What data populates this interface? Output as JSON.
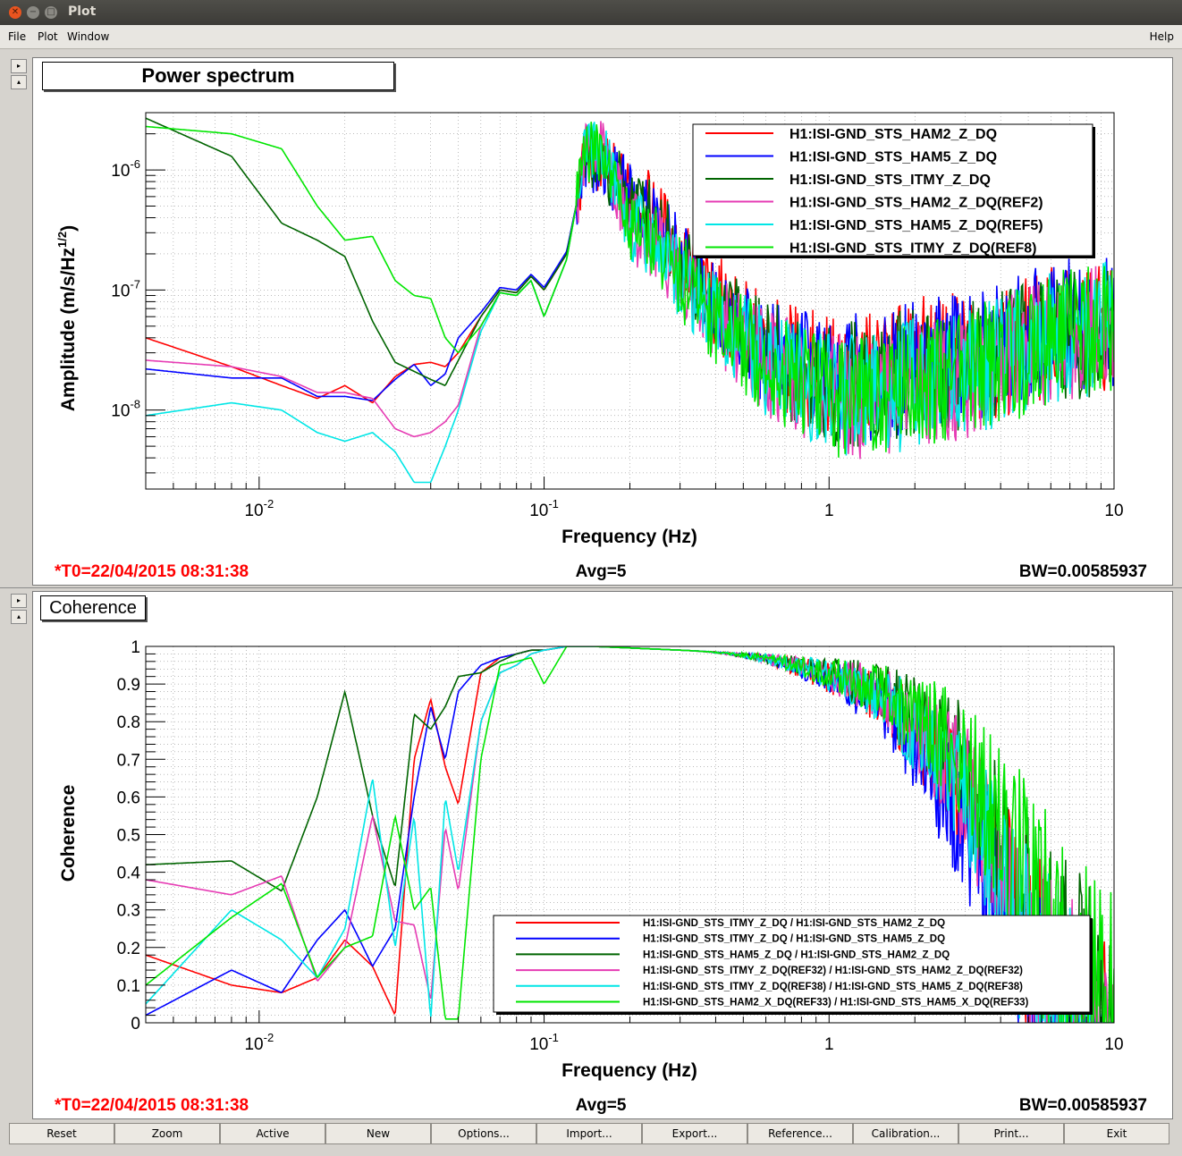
{
  "window": {
    "title": "Plot"
  },
  "menu": {
    "file": "File",
    "plot": "Plot",
    "window": "Window",
    "help": "Help"
  },
  "buttons": [
    "Reset",
    "Zoom",
    "Active",
    "New",
    "Options...",
    "Import...",
    "Export...",
    "Reference...",
    "Calibration...",
    "Print...",
    "Exit"
  ],
  "colors": {
    "red": "#ff0000",
    "blue": "#0000ff",
    "darkgreen": "#006400",
    "magenta": "#e63cb4",
    "cyan": "#00e6e6",
    "green": "#00e600",
    "status_red": "#ff0000"
  },
  "top": {
    "title": "Power spectrum",
    "xlabel": "Frequency (Hz)",
    "ylabel": "Amplitude (m/s/Hz",
    "ylabel_sup": "1/2",
    "ylabel_close": ")",
    "status_t0": "*T0=22/04/2015 08:31:38",
    "status_avg": "Avg=5",
    "status_bw": "BW=0.00585937",
    "legend": [
      "H1:ISI-GND_STS_HAM2_Z_DQ",
      "H1:ISI-GND_STS_HAM5_Z_DQ",
      "H1:ISI-GND_STS_ITMY_Z_DQ",
      "H1:ISI-GND_STS_HAM2_Z_DQ(REF2)",
      "H1:ISI-GND_STS_HAM5_Z_DQ(REF5)",
      "H1:ISI-GND_STS_ITMY_Z_DQ(REF8)"
    ]
  },
  "bottom": {
    "title": "Coherence",
    "xlabel": "Frequency (Hz)",
    "ylabel": "Coherence",
    "status_t0": "*T0=22/04/2015 08:31:38",
    "status_avg": "Avg=5",
    "status_bw": "BW=0.00585937",
    "legend": [
      "H1:ISI-GND_STS_ITMY_Z_DQ / H1:ISI-GND_STS_HAM2_Z_DQ",
      "H1:ISI-GND_STS_ITMY_Z_DQ / H1:ISI-GND_STS_HAM5_Z_DQ",
      "H1:ISI-GND_STS_HAM5_Z_DQ / H1:ISI-GND_STS_HAM2_Z_DQ",
      "H1:ISI-GND_STS_ITMY_Z_DQ(REF32) / H1:ISI-GND_STS_HAM2_Z_DQ(REF32)",
      "H1:ISI-GND_STS_ITMY_Z_DQ(REF38) / H1:ISI-GND_STS_HAM5_Z_DQ(REF38)",
      "H1:ISI-GND_STS_HAM2_X_DQ(REF33) / H1:ISI-GND_STS_HAM5_X_DQ(REF33)"
    ]
  },
  "chart_data": [
    {
      "type": "line",
      "title": "Power spectrum",
      "xlabel": "Frequency (Hz)",
      "ylabel": "Amplitude (m/s/Hz^1/2)",
      "xscale": "log",
      "yscale": "log",
      "xlim": [
        0.004,
        10
      ],
      "ylim": [
        2.2e-09,
        3e-06
      ],
      "x_ticks": [
        "10^-2",
        "10^-1",
        "1",
        "10"
      ],
      "y_ticks": [
        "10^-8",
        "10^-7",
        "10^-6"
      ],
      "grid": true,
      "legend_position": "top-right",
      "x": [
        0.004,
        0.008,
        0.012,
        0.016,
        0.02,
        0.025,
        0.03,
        0.035,
        0.04,
        0.045,
        0.05,
        0.06,
        0.07,
        0.08,
        0.09,
        0.1,
        0.12,
        0.14,
        0.16,
        0.2,
        0.25,
        0.3,
        0.4,
        0.6,
        1,
        1.5,
        2,
        3,
        4,
        6,
        10
      ],
      "series": [
        {
          "name": "H1:ISI-GND_STS_HAM2_Z_DQ",
          "color": "#ff0000",
          "values": [
            4e-08,
            2.3e-08,
            1.6e-08,
            1.25e-08,
            1.6e-08,
            1.15e-08,
            1.9e-08,
            2.4e-08,
            2.5e-08,
            2.3e-08,
            3e-08,
            6e-08,
            1e-07,
            9.5e-08,
            1.3e-07,
            1e-07,
            2e-07,
            1.3e-06,
            1.1e-06,
            6.5e-07,
            4e-07,
            1.9e-07,
            8e-08,
            3.2e-08,
            1.9e-08,
            2e-08,
            2.5e-08,
            2.8e-08,
            3e-08,
            4.5e-08,
            5e-08
          ]
        },
        {
          "name": "H1:ISI-GND_STS_HAM5_Z_DQ",
          "color": "#0000ff",
          "values": [
            2.2e-08,
            1.85e-08,
            1.85e-08,
            1.3e-08,
            1.3e-08,
            1.2e-08,
            1.8e-08,
            2.4e-08,
            1.6e-08,
            2e-08,
            4e-08,
            6.5e-08,
            1.05e-07,
            1e-07,
            1.35e-07,
            1.05e-07,
            2.1e-07,
            1.25e-06,
            1.05e-06,
            6e-07,
            3.8e-07,
            1.8e-07,
            7.5e-08,
            3e-08,
            1.8e-08,
            1.9e-08,
            2.4e-08,
            2.6e-08,
            3.2e-08,
            5e-08,
            5.5e-08
          ]
        },
        {
          "name": "H1:ISI-GND_STS_ITMY_Z_DQ",
          "color": "#006400",
          "values": [
            2.7e-06,
            1.3e-06,
            3.6e-07,
            2.6e-07,
            1.9e-07,
            5.5e-08,
            2.5e-08,
            2.1e-08,
            1.8e-08,
            1.6e-08,
            2.6e-08,
            6e-08,
            1e-07,
            9.5e-08,
            1.3e-07,
            1e-07,
            2e-07,
            1.25e-06,
            1.05e-06,
            6e-07,
            3.8e-07,
            1.8e-07,
            7.5e-08,
            3e-08,
            1.6e-08,
            1.8e-08,
            2.2e-08,
            2.4e-08,
            2.8e-08,
            4e-08,
            4.5e-08
          ]
        },
        {
          "name": "H1:ISI-GND_STS_HAM2_Z_DQ(REF2)",
          "color": "#e63cb4",
          "values": [
            2.6e-08,
            2.3e-08,
            1.9e-08,
            1.4e-08,
            1.4e-08,
            1.25e-08,
            7e-09,
            6e-09,
            6.5e-09,
            8e-09,
            1.1e-08,
            5e-08,
            9.5e-08,
            9e-08,
            1.2e-07,
            6e-08,
            1.8e-07,
            1.4e-06,
            1.5e-06,
            3.5e-07,
            2.4e-07,
            1.3e-07,
            6e-08,
            2.5e-08,
            1.3e-08,
            1.4e-08,
            1.7e-08,
            2e-08,
            2.5e-08,
            4e-08,
            5e-08
          ]
        },
        {
          "name": "H1:ISI-GND_STS_HAM5_Z_DQ(REF5)",
          "color": "#00e6e6",
          "values": [
            9e-09,
            1.15e-08,
            1e-08,
            6.5e-09,
            5.5e-09,
            6.5e-09,
            4.5e-09,
            2.5e-09,
            2.5e-09,
            5e-09,
            1e-08,
            4.5e-08,
            9.5e-08,
            9e-08,
            1.2e-07,
            6e-08,
            1.8e-07,
            1.4e-06,
            1.5e-06,
            3.5e-07,
            2.4e-07,
            1.3e-07,
            6e-08,
            2.5e-08,
            1.3e-08,
            1.4e-08,
            1.7e-08,
            2e-08,
            2.5e-08,
            4e-08,
            5e-08
          ]
        },
        {
          "name": "H1:ISI-GND_STS_ITMY_Z_DQ(REF8)",
          "color": "#00e600",
          "values": [
            2.3e-06,
            2e-06,
            1.5e-06,
            5e-07,
            2.6e-07,
            2.8e-07,
            1.2e-07,
            9e-08,
            8.5e-08,
            4e-08,
            3e-08,
            5e-08,
            9.5e-08,
            9e-08,
            1.2e-07,
            6e-08,
            1.8e-07,
            1.4e-06,
            1.5e-06,
            3.5e-07,
            2.4e-07,
            1.3e-07,
            6e-08,
            2.5e-08,
            1.3e-08,
            1.4e-08,
            1.7e-08,
            2e-08,
            2.5e-08,
            4e-08,
            5e-08
          ]
        }
      ]
    },
    {
      "type": "line",
      "title": "Coherence",
      "xlabel": "Frequency (Hz)",
      "ylabel": "Coherence",
      "xscale": "log",
      "xlim": [
        0.004,
        10
      ],
      "ylim": [
        0,
        1
      ],
      "x_ticks": [
        "10^-2",
        "10^-1",
        "1",
        "10"
      ],
      "y_ticks": [
        "0",
        "0.1",
        "0.2",
        "0.3",
        "0.4",
        "0.5",
        "0.6",
        "0.7",
        "0.8",
        "0.9",
        "1"
      ],
      "grid": true,
      "legend_position": "bottom-right",
      "x": [
        0.004,
        0.008,
        0.012,
        0.016,
        0.02,
        0.025,
        0.03,
        0.035,
        0.04,
        0.045,
        0.05,
        0.06,
        0.07,
        0.08,
        0.09,
        0.1,
        0.12,
        0.15,
        0.3,
        0.6,
        1,
        1.5,
        2,
        3,
        4,
        6,
        10
      ],
      "series": [
        {
          "name": "H1:ISI-GND_STS_ITMY_Z_DQ / H1:ISI-GND_STS_HAM2_Z_DQ",
          "color": "#ff0000",
          "values": [
            0.18,
            0.1,
            0.08,
            0.12,
            0.22,
            0.15,
            0.02,
            0.7,
            0.86,
            0.68,
            0.58,
            0.93,
            0.97,
            0.98,
            0.99,
            0.99,
            1.0,
            1.0,
            0.99,
            0.98,
            0.96,
            0.95,
            0.9,
            0.8,
            0.6,
            0.4,
            0.2
          ]
        },
        {
          "name": "H1:ISI-GND_STS_ITMY_Z_DQ / H1:ISI-GND_STS_HAM5_Z_DQ",
          "color": "#0000ff",
          "values": [
            0.02,
            0.14,
            0.08,
            0.22,
            0.3,
            0.15,
            0.25,
            0.6,
            0.84,
            0.7,
            0.88,
            0.95,
            0.97,
            0.98,
            0.99,
            0.99,
            1.0,
            1.0,
            0.99,
            0.98,
            0.96,
            0.93,
            0.85,
            0.7,
            0.5,
            0.3,
            0.1
          ]
        },
        {
          "name": "H1:ISI-GND_STS_HAM5_Z_DQ / H1:ISI-GND_STS_HAM2_Z_DQ",
          "color": "#006400",
          "values": [
            0.42,
            0.43,
            0.35,
            0.6,
            0.88,
            0.55,
            0.36,
            0.82,
            0.78,
            0.84,
            0.92,
            0.93,
            0.96,
            0.98,
            0.99,
            0.99,
            1.0,
            1.0,
            0.99,
            0.98,
            0.97,
            0.96,
            0.92,
            0.85,
            0.7,
            0.5,
            0.3
          ]
        },
        {
          "name": "H1:ISI-GND_STS_ITMY_Z_DQ(REF32) / H1:ISI-GND_STS_HAM2_Z_DQ(REF32)",
          "color": "#e63cb4",
          "values": [
            0.38,
            0.34,
            0.39,
            0.11,
            0.2,
            0.55,
            0.27,
            0.26,
            0.06,
            0.52,
            0.35,
            0.8,
            0.93,
            0.95,
            0.98,
            0.99,
            1.0,
            1.0,
            0.99,
            0.98,
            0.97,
            0.95,
            0.9,
            0.8,
            0.6,
            0.4,
            0.2
          ]
        },
        {
          "name": "H1:ISI-GND_STS_ITMY_Z_DQ(REF38) / H1:ISI-GND_STS_HAM5_Z_DQ(REF38)",
          "color": "#00e6e6",
          "values": [
            0.05,
            0.3,
            0.22,
            0.12,
            0.25,
            0.65,
            0.2,
            0.55,
            0.01,
            0.6,
            0.4,
            0.8,
            0.93,
            0.95,
            0.98,
            0.99,
            1.0,
            1.0,
            0.99,
            0.98,
            0.97,
            0.95,
            0.9,
            0.8,
            0.6,
            0.4,
            0.2
          ]
        },
        {
          "name": "H1:ISI-GND_STS_HAM2_X_DQ(REF33) / H1:ISI-GND_STS_HAM5_X_DQ(REF33)",
          "color": "#00e600",
          "values": [
            0.1,
            0.28,
            0.37,
            0.12,
            0.2,
            0.23,
            0.55,
            0.3,
            0.36,
            0.01,
            0.01,
            0.7,
            0.95,
            0.96,
            0.97,
            0.9,
            1.0,
            1.0,
            0.99,
            0.98,
            0.97,
            0.96,
            0.93,
            0.88,
            0.75,
            0.55,
            0.35
          ]
        }
      ]
    }
  ]
}
